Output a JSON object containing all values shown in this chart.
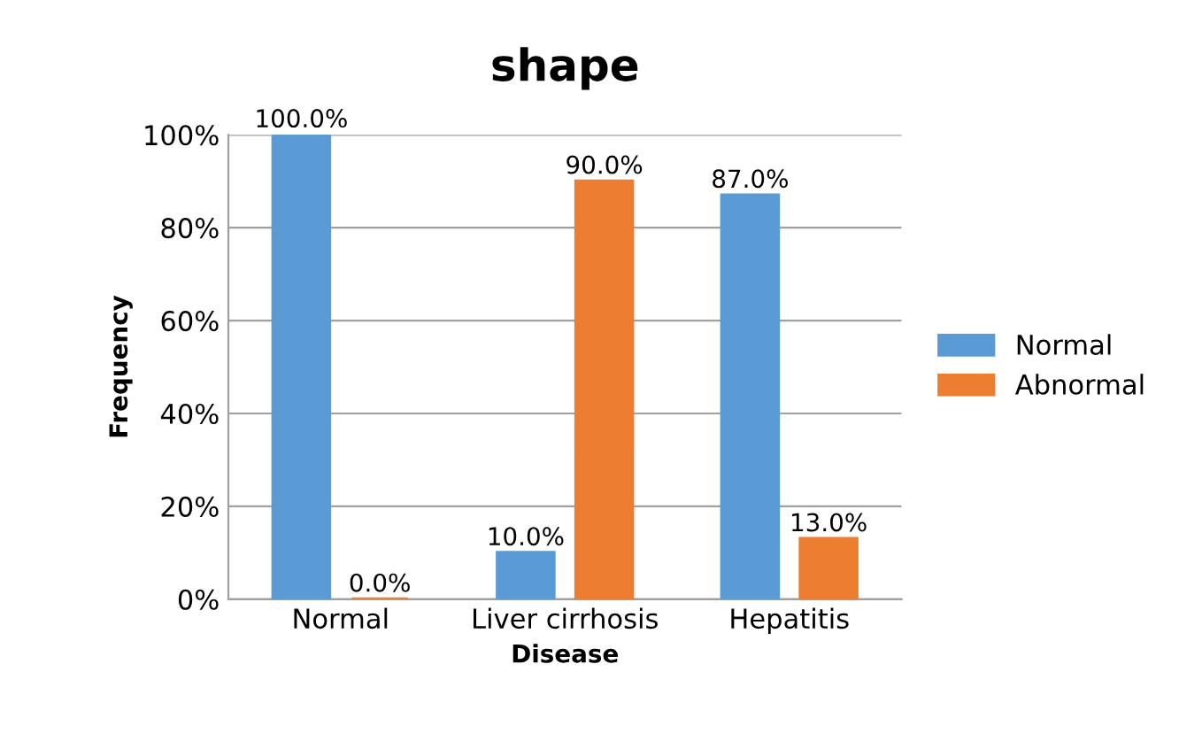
{
  "chart_data": {
    "type": "bar",
    "title": "shape",
    "xlabel": "Disease",
    "ylabel": "Frequency",
    "categories": [
      "Normal",
      "Liver cirrhosis",
      "Hepatitis"
    ],
    "series": [
      {
        "name": "Normal",
        "color": "#5b9bd5",
        "values": [
          100,
          10,
          87
        ],
        "value_labels": [
          "100.0%",
          "10.0%",
          "87.0%"
        ]
      },
      {
        "name": "Abnormal",
        "color": "#ed7d31",
        "values": [
          0,
          90,
          13
        ],
        "value_labels": [
          "0.0%",
          "90.0%",
          "13.0%"
        ]
      }
    ],
    "ylim": [
      0,
      100
    ],
    "yticks": [
      {
        "value": 0,
        "label": "0%"
      },
      {
        "value": 20,
        "label": "20%"
      },
      {
        "value": 40,
        "label": "40%"
      },
      {
        "value": 60,
        "label": "60%"
      },
      {
        "value": 80,
        "label": "80%"
      },
      {
        "value": 100,
        "label": "100%"
      }
    ],
    "grid": "y",
    "legend": "right"
  }
}
